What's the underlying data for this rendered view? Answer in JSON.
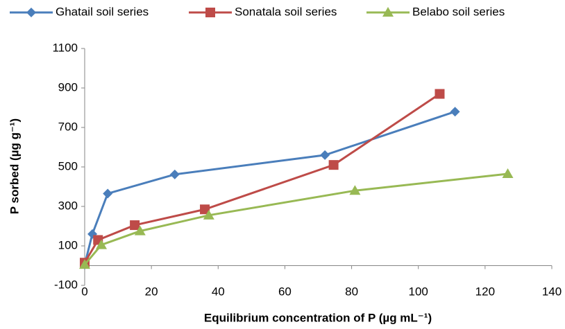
{
  "chart_data": {
    "type": "line",
    "x_label": "Equilibrium concentration of P (µg mL⁻¹)",
    "y_label": "P sorbed (µg g⁻¹)",
    "xlim": [
      0,
      140
    ],
    "xticks": [
      0,
      20,
      40,
      60,
      80,
      100,
      120,
      140
    ],
    "ylim": [
      -100,
      1100
    ],
    "yticks": [
      -100,
      100,
      300,
      500,
      700,
      900,
      1100
    ],
    "legend": "top",
    "series": [
      {
        "name": "Ghatail soil series",
        "color": "#4a7ebb",
        "marker": "diamond",
        "x": [
          0,
          2.3,
          6.9,
          27,
          72,
          111
        ],
        "values": [
          5,
          160,
          365,
          462,
          560,
          780
        ]
      },
      {
        "name": "Sonatala soil series",
        "color": "#be4b48",
        "marker": "square",
        "x": [
          0,
          4,
          15,
          36,
          74.6,
          106.4
        ],
        "values": [
          15,
          130,
          205,
          285,
          510,
          870
        ]
      },
      {
        "name": "Belabo soil series",
        "color": "#98b954",
        "marker": "triangle",
        "x": [
          0,
          5,
          16.6,
          37.2,
          81,
          126.8
        ],
        "values": [
          5,
          105,
          175,
          255,
          380,
          465
        ]
      }
    ]
  }
}
